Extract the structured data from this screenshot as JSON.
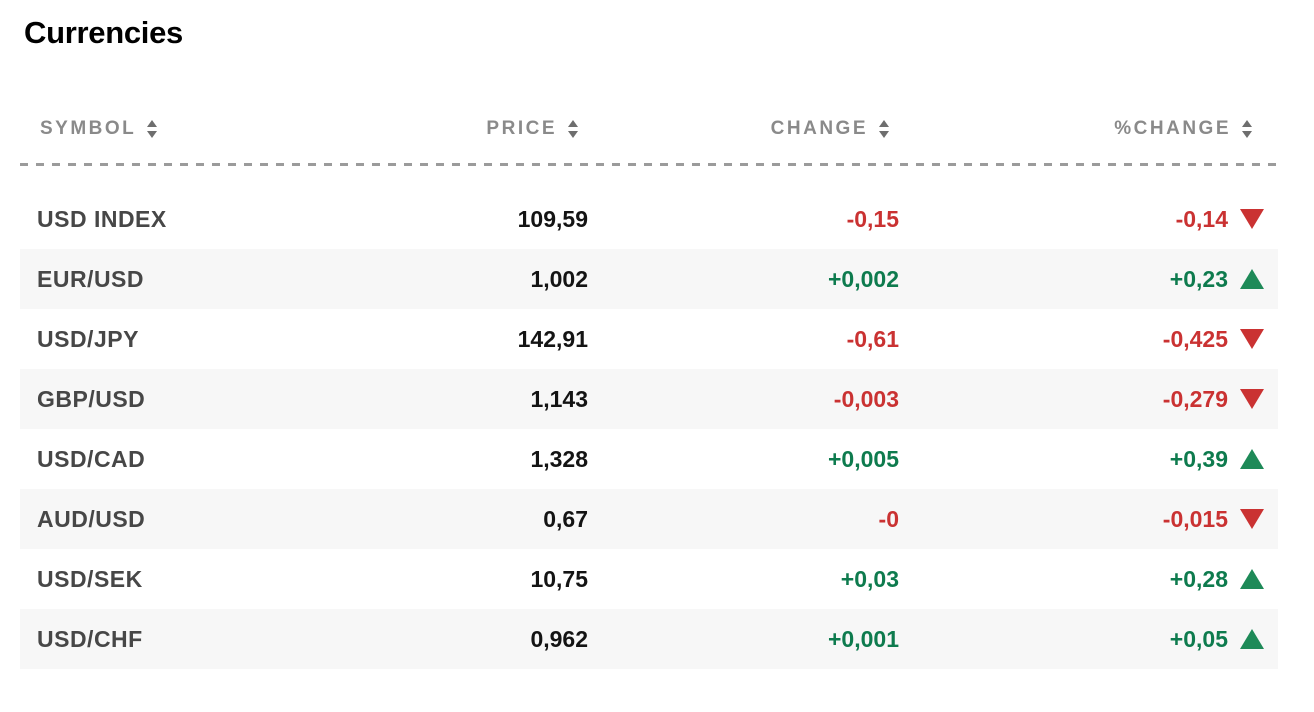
{
  "page": {
    "title": "Currencies"
  },
  "colors": {
    "title-text": "#000000",
    "header-text": "#8a8a8a",
    "sort-arrow": "#6e6e6e",
    "divider": "#9b9b9b",
    "stripe": "#f7f7f7",
    "symbol-text": "#474747",
    "price-text": "#141414",
    "positive": "#0e7b4e",
    "positive-arrow": "#1e8a58",
    "negative": "#ca3232"
  },
  "icons": {
    "sort": "up-down-sort-arrows",
    "trend_up": "up-triangle",
    "trend_down": "down-triangle"
  },
  "table": {
    "headers": [
      {
        "label": "SYMBOL"
      },
      {
        "label": "PRICE"
      },
      {
        "label": "CHANGE"
      },
      {
        "label": "%CHANGE"
      }
    ],
    "rows": [
      {
        "symbol": "USD INDEX",
        "price": "109,59",
        "change": "-0,15",
        "change_sign": "neg",
        "pct_change": "-0,14",
        "pct_sign": "neg",
        "trend": "down"
      },
      {
        "symbol": "EUR/USD",
        "price": "1,002",
        "change": "+0,002",
        "change_sign": "pos",
        "pct_change": "+0,23",
        "pct_sign": "pos",
        "trend": "up"
      },
      {
        "symbol": "USD/JPY",
        "price": "142,91",
        "change": "-0,61",
        "change_sign": "neg",
        "pct_change": "-0,425",
        "pct_sign": "neg",
        "trend": "down"
      },
      {
        "symbol": "GBP/USD",
        "price": "1,143",
        "change": "-0,003",
        "change_sign": "neg",
        "pct_change": "-0,279",
        "pct_sign": "neg",
        "trend": "down"
      },
      {
        "symbol": "USD/CAD",
        "price": "1,328",
        "change": "+0,005",
        "change_sign": "pos",
        "pct_change": "+0,39",
        "pct_sign": "pos",
        "trend": "up"
      },
      {
        "symbol": "AUD/USD",
        "price": "0,67",
        "change": "-0",
        "change_sign": "neg",
        "pct_change": "-0,015",
        "pct_sign": "neg",
        "trend": "down"
      },
      {
        "symbol": "USD/SEK",
        "price": "10,75",
        "change": "+0,03",
        "change_sign": "pos",
        "pct_change": "+0,28",
        "pct_sign": "pos",
        "trend": "up"
      },
      {
        "symbol": "USD/CHF",
        "price": "0,962",
        "change": "+0,001",
        "change_sign": "pos",
        "pct_change": "+0,05",
        "pct_sign": "pos",
        "trend": "up"
      }
    ]
  }
}
